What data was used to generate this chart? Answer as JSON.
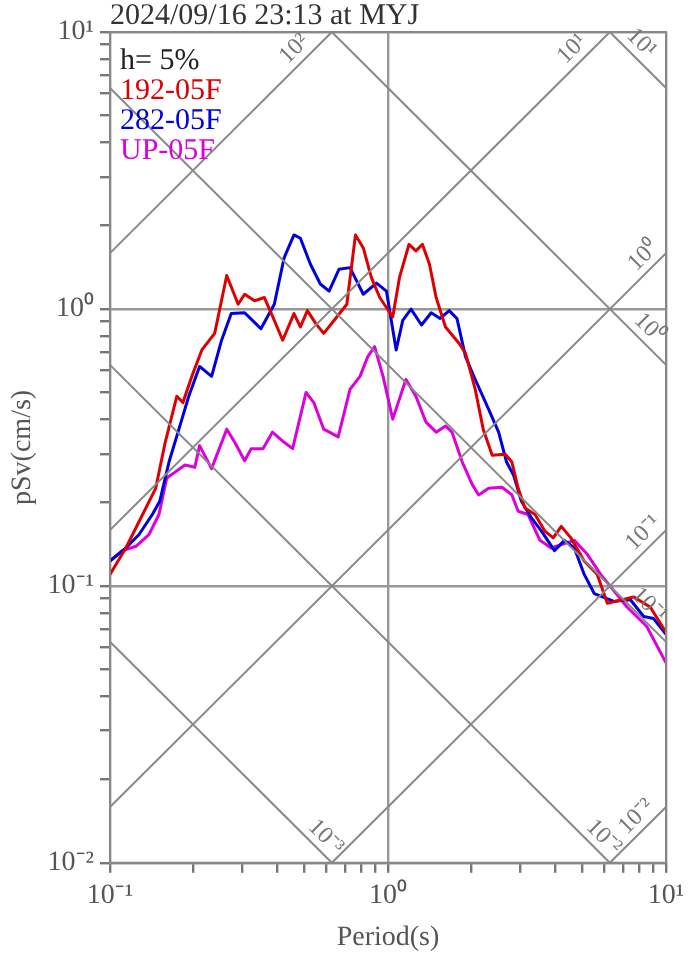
{
  "chart_data": {
    "type": "line",
    "title": "2024/09/16 23:13 at MYJ",
    "xlabel": "Period(s)",
    "ylabel": "pSv(cm/s)",
    "log": "xy",
    "xlim": [
      0.1,
      10
    ],
    "ylim": [
      0.01,
      10
    ],
    "xticks": [
      {
        "value": 0.1,
        "label": "10⁻¹"
      },
      {
        "value": 0.2,
        "label": null
      },
      {
        "value": 0.3,
        "label": null
      },
      {
        "value": 0.4,
        "label": null
      },
      {
        "value": 0.5,
        "label": null
      },
      {
        "value": 0.6,
        "label": null
      },
      {
        "value": 0.7,
        "label": null
      },
      {
        "value": 0.8,
        "label": null
      },
      {
        "value": 0.9,
        "label": null
      },
      {
        "value": 1,
        "label": "10⁰"
      },
      {
        "value": 2,
        "label": null
      },
      {
        "value": 3,
        "label": null
      },
      {
        "value": 4,
        "label": null
      },
      {
        "value": 5,
        "label": null
      },
      {
        "value": 6,
        "label": null
      },
      {
        "value": 7,
        "label": null
      },
      {
        "value": 8,
        "label": null
      },
      {
        "value": 9,
        "label": null
      },
      {
        "value": 10,
        "label": "10¹"
      }
    ],
    "yticks": [
      {
        "value": 0.01,
        "label": "10⁻²"
      },
      {
        "value": 0.02,
        "label": null
      },
      {
        "value": 0.03,
        "label": null
      },
      {
        "value": 0.04,
        "label": null
      },
      {
        "value": 0.05,
        "label": null
      },
      {
        "value": 0.06,
        "label": null
      },
      {
        "value": 0.07,
        "label": null
      },
      {
        "value": 0.08,
        "label": null
      },
      {
        "value": 0.09,
        "label": null
      },
      {
        "value": 0.1,
        "label": "10⁻¹"
      },
      {
        "value": 0.2,
        "label": null
      },
      {
        "value": 0.3,
        "label": null
      },
      {
        "value": 0.4,
        "label": null
      },
      {
        "value": 0.5,
        "label": null
      },
      {
        "value": 0.6,
        "label": null
      },
      {
        "value": 0.7,
        "label": null
      },
      {
        "value": 0.8,
        "label": null
      },
      {
        "value": 0.9,
        "label": null
      },
      {
        "value": 1,
        "label": "10⁰"
      },
      {
        "value": 2,
        "label": null
      },
      {
        "value": 3,
        "label": null
      },
      {
        "value": 4,
        "label": null
      },
      {
        "value": 5,
        "label": null
      },
      {
        "value": 6,
        "label": null
      },
      {
        "value": 7,
        "label": null
      },
      {
        "value": 8,
        "label": null
      },
      {
        "value": 9,
        "label": null
      },
      {
        "value": 10,
        "label": "10¹"
      }
    ],
    "grid": true,
    "legend": "top left",
    "annotations": [
      "h= 5%",
      {
        "text": "10²",
        "x": 0.5,
        "y": 8
      },
      {
        "text": "10¹",
        "x": 5,
        "y": 8
      },
      {
        "text": "10¹",
        "x": 7.5,
        "y": 8.4
      },
      {
        "text": "10⁰",
        "x": 9,
        "y": 1.43
      },
      {
        "text": "10⁰",
        "x": 8,
        "y": 0.785
      },
      {
        "text": "10⁻¹",
        "x": 9,
        "y": 0.143
      },
      {
        "text": "10⁻¹",
        "x": 8,
        "y": 0.0785
      },
      {
        "text": "10⁻²",
        "x": 8.5,
        "y": 0.0135
      },
      {
        "text": "10⁻²",
        "x": 5.5,
        "y": 0.0114
      },
      {
        "text": "10⁻³",
        "x": 0.55,
        "y": 0.0114
      }
    ],
    "series": [
      {
        "color": "#888888",
        "x": [
          6.28,
          10
        ],
        "values": [
          10,
          6.28
        ]
      },
      {
        "color": "#888888",
        "x": [
          0.628,
          10
        ],
        "values": [
          10,
          0.628
        ]
      },
      {
        "color": "#888888",
        "x": [
          0.1,
          10
        ],
        "values": [
          6.28,
          0.0628
        ]
      },
      {
        "color": "#888888",
        "x": [
          0.1,
          6.28
        ],
        "values": [
          0.628,
          0.01
        ]
      },
      {
        "color": "#888888",
        "x": [
          0.1,
          0.628
        ],
        "values": [
          0.0628,
          0.01
        ]
      },
      {
        "color": "#888888",
        "x": [
          0.1,
          0.628
        ],
        "values": [
          1.59,
          10
        ]
      },
      {
        "color": "#888888",
        "x": [
          0.1,
          6.28
        ],
        "values": [
          0.159,
          10
        ]
      },
      {
        "color": "#888888",
        "x": [
          0.1,
          10
        ],
        "values": [
          0.0159,
          1.59
        ]
      },
      {
        "color": "#888888",
        "x": [
          0.628,
          10
        ],
        "values": [
          0.01,
          0.159
        ]
      },
      {
        "color": "#888888",
        "x": [
          6.28,
          10
        ],
        "values": [
          0.01,
          0.0159
        ]
      },
      {
        "name": "192-05F",
        "color": "#dd0000",
        "x": [
          0.1,
          0.114,
          0.131,
          0.146,
          0.158,
          0.174,
          0.183,
          0.197,
          0.214,
          0.238,
          0.263,
          0.289,
          0.305,
          0.331,
          0.359,
          0.39,
          0.418,
          0.459,
          0.484,
          0.513,
          0.55,
          0.587,
          0.648,
          0.711,
          0.764,
          0.815,
          0.871,
          0.934,
          1.04,
          1.1,
          1.19,
          1.26,
          1.33,
          1.41,
          1.49,
          1.61,
          1.8,
          1.9,
          2.06,
          2.2,
          2.37,
          2.64,
          2.79,
          2.94,
          3.11,
          3.38,
          3.66,
          3.93,
          4.2,
          4.55,
          5.08,
          5.66,
          6.15,
          7.66,
          8.77,
          10
        ],
        "values": [
          0.11,
          0.137,
          0.181,
          0.225,
          0.33,
          0.484,
          0.459,
          0.571,
          0.711,
          0.816,
          1.32,
          1.04,
          1.13,
          1.07,
          1.1,
          0.909,
          0.771,
          0.962,
          0.861,
          0.986,
          0.885,
          0.816,
          0.924,
          1.04,
          1.85,
          1.66,
          1.3,
          1.1,
          0.935,
          1.3,
          1.71,
          1.62,
          1.71,
          1.45,
          1.1,
          0.861,
          0.752,
          0.692,
          0.512,
          0.368,
          0.296,
          0.299,
          0.28,
          0.225,
          0.191,
          0.181,
          0.158,
          0.149,
          0.164,
          0.149,
          0.123,
          0.11,
          0.0865,
          0.0912,
          0.0839,
          0.068
        ]
      },
      {
        "name": "282-05F",
        "color": "#0000dd",
        "x": [
          0.1,
          0.114,
          0.127,
          0.142,
          0.151,
          0.163,
          0.177,
          0.192,
          0.21,
          0.232,
          0.252,
          0.273,
          0.305,
          0.349,
          0.39,
          0.423,
          0.459,
          0.484,
          0.526,
          0.571,
          0.614,
          0.666,
          0.73,
          0.815,
          0.909,
          0.987,
          1.07,
          1.13,
          1.21,
          1.32,
          1.43,
          1.54,
          1.66,
          1.77,
          1.9,
          2.06,
          2.3,
          2.5,
          2.67,
          2.83,
          3.02,
          3.28,
          3.56,
          3.97,
          4.31,
          4.68,
          5.08,
          5.52,
          6.5,
          7.45,
          8.31,
          9.02,
          10
        ],
        "values": [
          0.123,
          0.137,
          0.153,
          0.181,
          0.202,
          0.28,
          0.368,
          0.484,
          0.62,
          0.571,
          0.771,
          0.962,
          0.969,
          0.848,
          1.04,
          1.53,
          1.85,
          1.8,
          1.45,
          1.23,
          1.16,
          1.39,
          1.41,
          1.13,
          1.24,
          1.16,
          0.711,
          0.909,
          0.999,
          0.875,
          0.969,
          0.924,
          0.986,
          0.924,
          0.673,
          0.556,
          0.435,
          0.359,
          0.28,
          0.251,
          0.202,
          0.176,
          0.158,
          0.134,
          0.146,
          0.137,
          0.11,
          0.0938,
          0.0879,
          0.0891,
          0.0775,
          0.0762,
          0.0668
        ]
      },
      {
        "name": "UP-05F",
        "color": "#dd00dd",
        "x": [
          0.1,
          0.111,
          0.124,
          0.138,
          0.15,
          0.16,
          0.172,
          0.186,
          0.202,
          0.21,
          0.232,
          0.263,
          0.281,
          0.305,
          0.322,
          0.355,
          0.384,
          0.423,
          0.454,
          0.507,
          0.541,
          0.587,
          0.662,
          0.73,
          0.793,
          0.846,
          0.895,
          0.96,
          1.04,
          1.16,
          1.26,
          1.37,
          1.49,
          1.61,
          1.7,
          1.85,
          2.01,
          2.12,
          2.3,
          2.57,
          2.79,
          2.94,
          3.19,
          3.52,
          3.86,
          4.31,
          4.68,
          5.21,
          5.82,
          7.24,
          8.53,
          10
        ],
        "values": [
          0.123,
          0.134,
          0.139,
          0.153,
          0.181,
          0.245,
          0.258,
          0.273,
          0.268,
          0.321,
          0.265,
          0.368,
          0.33,
          0.283,
          0.313,
          0.313,
          0.359,
          0.33,
          0.313,
          0.499,
          0.459,
          0.368,
          0.345,
          0.512,
          0.571,
          0.673,
          0.731,
          0.571,
          0.4,
          0.556,
          0.484,
          0.39,
          0.359,
          0.378,
          0.359,
          0.28,
          0.232,
          0.213,
          0.225,
          0.227,
          0.213,
          0.186,
          0.181,
          0.146,
          0.137,
          0.142,
          0.146,
          0.13,
          0.11,
          0.0839,
          0.0713,
          0.0527
        ]
      }
    ]
  }
}
